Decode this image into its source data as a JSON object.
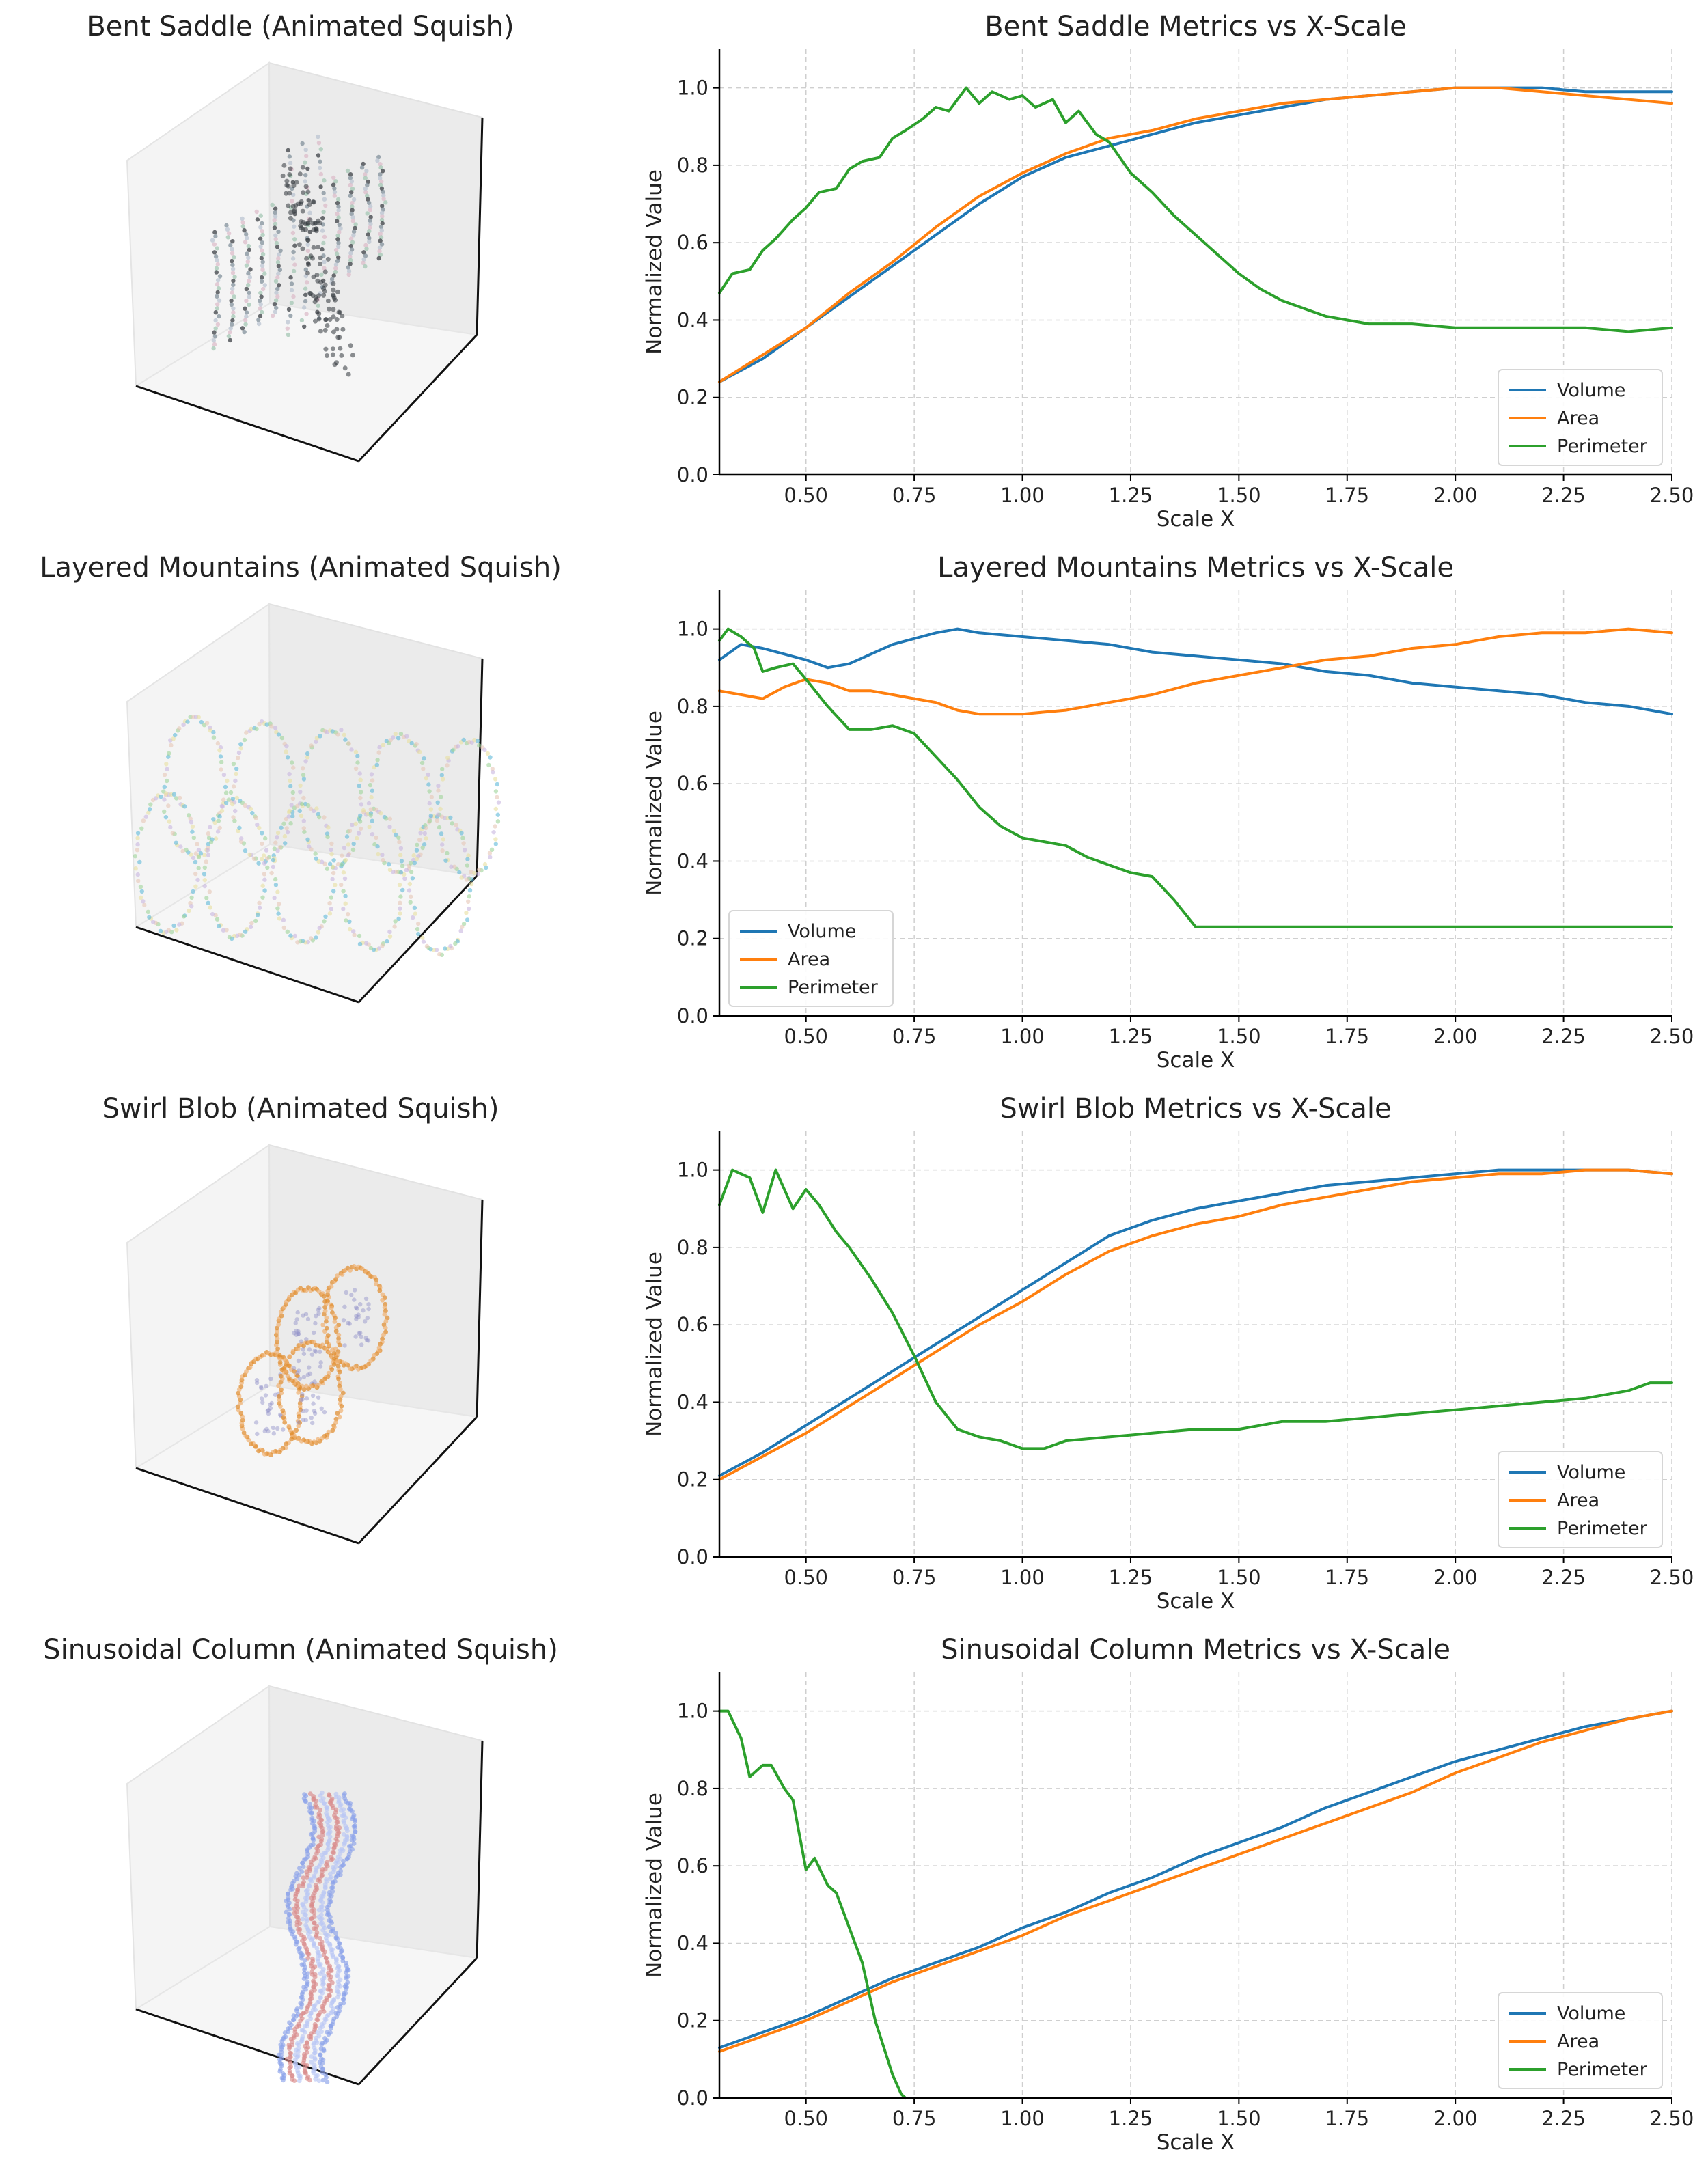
{
  "series_colors": {
    "Volume": "#1f77b4",
    "Area": "#ff7f0e",
    "Perimeter": "#2ca02c"
  },
  "panels": [
    {
      "title": "Bent Saddle (Animated Squish)",
      "shape": "bent-saddle",
      "palette": [
        "#30353a",
        "#7a8a96",
        "#b8c2d0",
        "#dcb9c8",
        "#9fc4b0"
      ]
    },
    {
      "title": "Layered Mountains (Animated Squish)",
      "shape": "layered-mountains",
      "palette": [
        "#5fb9d8",
        "#9fd49a",
        "#e6c7b5",
        "#c8b6e0",
        "#e8e0a0"
      ]
    },
    {
      "title": "Swirl Blob (Animated Squish)",
      "shape": "swirl-blob",
      "palette": [
        "#e08a2a",
        "#f0b070",
        "#8e8ec8",
        "#f5dcc0",
        "#c46a20"
      ]
    },
    {
      "title": "Sinusoidal Column (Animated Squish)",
      "shape": "sinusoidal-column",
      "palette": [
        "#8aa2ea",
        "#b9c6f5",
        "#d88a8a",
        "#c0c8f0",
        "#6a86e0"
      ]
    }
  ],
  "chart_data": [
    {
      "type": "line",
      "title": "Bent Saddle Metrics vs X-Scale",
      "xlabel": "Scale X",
      "ylabel": "Normalized Value",
      "xlim": [
        0.3,
        2.5
      ],
      "ylim": [
        0.0,
        1.1
      ],
      "xticks": [
        0.5,
        0.75,
        1.0,
        1.25,
        1.5,
        1.75,
        2.0,
        2.25,
        2.5
      ],
      "xtick_labels": [
        "0.50",
        "0.75",
        "1.00",
        "1.25",
        "1.50",
        "1.75",
        "2.00",
        "2.25",
        "2.50"
      ],
      "yticks": [
        0.0,
        0.2,
        0.4,
        0.6,
        0.8,
        1.0
      ],
      "ytick_labels": [
        "0.0",
        "0.2",
        "0.4",
        "0.6",
        "0.8",
        "1.0"
      ],
      "grid": true,
      "legend": "lower right",
      "series": [
        {
          "name": "Volume",
          "x": [
            0.3,
            0.4,
            0.5,
            0.6,
            0.7,
            0.8,
            0.9,
            1.0,
            1.1,
            1.2,
            1.3,
            1.4,
            1.5,
            1.6,
            1.7,
            1.8,
            1.9,
            2.0,
            2.1,
            2.2,
            2.3,
            2.4,
            2.5
          ],
          "y": [
            0.24,
            0.3,
            0.38,
            0.46,
            0.54,
            0.62,
            0.7,
            0.77,
            0.82,
            0.85,
            0.88,
            0.91,
            0.93,
            0.95,
            0.97,
            0.98,
            0.99,
            1.0,
            1.0,
            1.0,
            0.99,
            0.99,
            0.99
          ]
        },
        {
          "name": "Area",
          "x": [
            0.3,
            0.4,
            0.5,
            0.6,
            0.7,
            0.8,
            0.9,
            1.0,
            1.1,
            1.2,
            1.3,
            1.4,
            1.5,
            1.6,
            1.7,
            1.8,
            1.9,
            2.0,
            2.1,
            2.2,
            2.3,
            2.4,
            2.5
          ],
          "y": [
            0.24,
            0.31,
            0.38,
            0.47,
            0.55,
            0.64,
            0.72,
            0.78,
            0.83,
            0.87,
            0.89,
            0.92,
            0.94,
            0.96,
            0.97,
            0.98,
            0.99,
            1.0,
            1.0,
            0.99,
            0.98,
            0.97,
            0.96
          ]
        },
        {
          "name": "Perimeter",
          "x": [
            0.3,
            0.33,
            0.37,
            0.4,
            0.43,
            0.47,
            0.5,
            0.53,
            0.57,
            0.6,
            0.63,
            0.67,
            0.7,
            0.73,
            0.77,
            0.8,
            0.83,
            0.87,
            0.9,
            0.93,
            0.97,
            1.0,
            1.03,
            1.07,
            1.1,
            1.13,
            1.17,
            1.2,
            1.25,
            1.3,
            1.35,
            1.4,
            1.45,
            1.5,
            1.55,
            1.6,
            1.65,
            1.7,
            1.75,
            1.8,
            1.9,
            2.0,
            2.1,
            2.2,
            2.3,
            2.4,
            2.5
          ],
          "y": [
            0.47,
            0.52,
            0.53,
            0.58,
            0.61,
            0.66,
            0.69,
            0.73,
            0.74,
            0.79,
            0.81,
            0.82,
            0.87,
            0.89,
            0.92,
            0.95,
            0.94,
            1.0,
            0.96,
            0.99,
            0.97,
            0.98,
            0.95,
            0.97,
            0.91,
            0.94,
            0.88,
            0.86,
            0.78,
            0.73,
            0.67,
            0.62,
            0.57,
            0.52,
            0.48,
            0.45,
            0.43,
            0.41,
            0.4,
            0.39,
            0.39,
            0.38,
            0.38,
            0.38,
            0.38,
            0.37,
            0.38
          ]
        }
      ]
    },
    {
      "type": "line",
      "title": "Layered Mountains Metrics vs X-Scale",
      "xlabel": "Scale X",
      "ylabel": "Normalized Value",
      "xlim": [
        0.3,
        2.5
      ],
      "ylim": [
        0.0,
        1.1
      ],
      "xticks": [
        0.5,
        0.75,
        1.0,
        1.25,
        1.5,
        1.75,
        2.0,
        2.25,
        2.5
      ],
      "xtick_labels": [
        "0.50",
        "0.75",
        "1.00",
        "1.25",
        "1.50",
        "1.75",
        "2.00",
        "2.25",
        "2.50"
      ],
      "yticks": [
        0.0,
        0.2,
        0.4,
        0.6,
        0.8,
        1.0
      ],
      "ytick_labels": [
        "0.0",
        "0.2",
        "0.4",
        "0.6",
        "0.8",
        "1.0"
      ],
      "grid": true,
      "legend": "lower left",
      "series": [
        {
          "name": "Volume",
          "x": [
            0.3,
            0.35,
            0.4,
            0.5,
            0.55,
            0.6,
            0.7,
            0.8,
            0.85,
            0.9,
            1.0,
            1.1,
            1.2,
            1.3,
            1.4,
            1.5,
            1.6,
            1.7,
            1.8,
            1.9,
            2.0,
            2.1,
            2.2,
            2.3,
            2.4,
            2.5
          ],
          "y": [
            0.92,
            0.96,
            0.95,
            0.92,
            0.9,
            0.91,
            0.96,
            0.99,
            1.0,
            0.99,
            0.98,
            0.97,
            0.96,
            0.94,
            0.93,
            0.92,
            0.91,
            0.89,
            0.88,
            0.86,
            0.85,
            0.84,
            0.83,
            0.81,
            0.8,
            0.78
          ]
        },
        {
          "name": "Area",
          "x": [
            0.3,
            0.35,
            0.4,
            0.45,
            0.5,
            0.55,
            0.6,
            0.65,
            0.7,
            0.75,
            0.8,
            0.85,
            0.9,
            1.0,
            1.1,
            1.2,
            1.3,
            1.4,
            1.5,
            1.6,
            1.7,
            1.8,
            1.9,
            2.0,
            2.1,
            2.2,
            2.3,
            2.4,
            2.5
          ],
          "y": [
            0.84,
            0.83,
            0.82,
            0.85,
            0.87,
            0.86,
            0.84,
            0.84,
            0.83,
            0.82,
            0.81,
            0.79,
            0.78,
            0.78,
            0.79,
            0.81,
            0.83,
            0.86,
            0.88,
            0.9,
            0.92,
            0.93,
            0.95,
            0.96,
            0.98,
            0.99,
            0.99,
            1.0,
            0.99
          ]
        },
        {
          "name": "Perimeter",
          "x": [
            0.3,
            0.32,
            0.35,
            0.38,
            0.4,
            0.43,
            0.47,
            0.5,
            0.55,
            0.6,
            0.65,
            0.7,
            0.75,
            0.8,
            0.85,
            0.9,
            0.95,
            1.0,
            1.05,
            1.1,
            1.15,
            1.2,
            1.25,
            1.3,
            1.35,
            1.4,
            1.45,
            1.5,
            1.6,
            1.7,
            1.8,
            1.9,
            2.0,
            2.1,
            2.2,
            2.3,
            2.4,
            2.5
          ],
          "y": [
            0.97,
            1.0,
            0.98,
            0.95,
            0.89,
            0.9,
            0.91,
            0.87,
            0.8,
            0.74,
            0.74,
            0.75,
            0.73,
            0.67,
            0.61,
            0.54,
            0.49,
            0.46,
            0.45,
            0.44,
            0.41,
            0.39,
            0.37,
            0.36,
            0.3,
            0.23,
            0.23,
            0.23,
            0.23,
            0.23,
            0.23,
            0.23,
            0.23,
            0.23,
            0.23,
            0.23,
            0.23,
            0.23
          ]
        }
      ]
    },
    {
      "type": "line",
      "title": "Swirl Blob Metrics vs X-Scale",
      "xlabel": "Scale X",
      "ylabel": "Normalized Value",
      "xlim": [
        0.3,
        2.5
      ],
      "ylim": [
        0.0,
        1.1
      ],
      "xticks": [
        0.5,
        0.75,
        1.0,
        1.25,
        1.5,
        1.75,
        2.0,
        2.25,
        2.5
      ],
      "xtick_labels": [
        "0.50",
        "0.75",
        "1.00",
        "1.25",
        "1.50",
        "1.75",
        "2.00",
        "2.25",
        "2.50"
      ],
      "yticks": [
        0.0,
        0.2,
        0.4,
        0.6,
        0.8,
        1.0
      ],
      "ytick_labels": [
        "0.0",
        "0.2",
        "0.4",
        "0.6",
        "0.8",
        "1.0"
      ],
      "grid": true,
      "legend": "lower right",
      "series": [
        {
          "name": "Volume",
          "x": [
            0.3,
            0.4,
            0.5,
            0.6,
            0.7,
            0.8,
            0.9,
            1.0,
            1.1,
            1.2,
            1.3,
            1.4,
            1.5,
            1.6,
            1.7,
            1.8,
            1.9,
            2.0,
            2.1,
            2.2,
            2.3,
            2.4,
            2.5
          ],
          "y": [
            0.21,
            0.27,
            0.34,
            0.41,
            0.48,
            0.55,
            0.62,
            0.69,
            0.76,
            0.83,
            0.87,
            0.9,
            0.92,
            0.94,
            0.96,
            0.97,
            0.98,
            0.99,
            1.0,
            1.0,
            1.0,
            1.0,
            0.99
          ]
        },
        {
          "name": "Area",
          "x": [
            0.3,
            0.4,
            0.5,
            0.6,
            0.7,
            0.8,
            0.9,
            1.0,
            1.1,
            1.2,
            1.3,
            1.4,
            1.5,
            1.6,
            1.7,
            1.8,
            1.9,
            2.0,
            2.1,
            2.2,
            2.3,
            2.4,
            2.5
          ],
          "y": [
            0.2,
            0.26,
            0.32,
            0.39,
            0.46,
            0.53,
            0.6,
            0.66,
            0.73,
            0.79,
            0.83,
            0.86,
            0.88,
            0.91,
            0.93,
            0.95,
            0.97,
            0.98,
            0.99,
            0.99,
            1.0,
            1.0,
            0.99
          ]
        },
        {
          "name": "Perimeter",
          "x": [
            0.3,
            0.33,
            0.37,
            0.4,
            0.43,
            0.47,
            0.5,
            0.53,
            0.57,
            0.6,
            0.65,
            0.7,
            0.75,
            0.8,
            0.85,
            0.9,
            0.95,
            1.0,
            1.05,
            1.1,
            1.2,
            1.3,
            1.4,
            1.5,
            1.6,
            1.7,
            1.8,
            1.9,
            2.0,
            2.1,
            2.2,
            2.3,
            2.4,
            2.45,
            2.5
          ],
          "y": [
            0.91,
            1.0,
            0.98,
            0.89,
            1.0,
            0.9,
            0.95,
            0.91,
            0.84,
            0.8,
            0.72,
            0.63,
            0.52,
            0.4,
            0.33,
            0.31,
            0.3,
            0.28,
            0.28,
            0.3,
            0.31,
            0.32,
            0.33,
            0.33,
            0.35,
            0.35,
            0.36,
            0.37,
            0.38,
            0.39,
            0.4,
            0.41,
            0.43,
            0.45,
            0.45
          ]
        }
      ]
    },
    {
      "type": "line",
      "title": "Sinusoidal Column Metrics vs X-Scale",
      "xlabel": "Scale X",
      "ylabel": "Normalized Value",
      "xlim": [
        0.3,
        2.5
      ],
      "ylim": [
        0.0,
        1.1
      ],
      "xticks": [
        0.5,
        0.75,
        1.0,
        1.25,
        1.5,
        1.75,
        2.0,
        2.25,
        2.5
      ],
      "xtick_labels": [
        "0.50",
        "0.75",
        "1.00",
        "1.25",
        "1.50",
        "1.75",
        "2.00",
        "2.25",
        "2.50"
      ],
      "yticks": [
        0.0,
        0.2,
        0.4,
        0.6,
        0.8,
        1.0
      ],
      "ytick_labels": [
        "0.0",
        "0.2",
        "0.4",
        "0.6",
        "0.8",
        "1.0"
      ],
      "grid": true,
      "legend": "lower right",
      "series": [
        {
          "name": "Volume",
          "x": [
            0.3,
            0.4,
            0.5,
            0.6,
            0.7,
            0.8,
            0.9,
            1.0,
            1.1,
            1.2,
            1.3,
            1.4,
            1.5,
            1.6,
            1.7,
            1.8,
            1.9,
            2.0,
            2.1,
            2.2,
            2.3,
            2.4,
            2.5
          ],
          "y": [
            0.13,
            0.17,
            0.21,
            0.26,
            0.31,
            0.35,
            0.39,
            0.44,
            0.48,
            0.53,
            0.57,
            0.62,
            0.66,
            0.7,
            0.75,
            0.79,
            0.83,
            0.87,
            0.9,
            0.93,
            0.96,
            0.98,
            1.0
          ]
        },
        {
          "name": "Area",
          "x": [
            0.3,
            0.4,
            0.5,
            0.6,
            0.7,
            0.8,
            0.9,
            1.0,
            1.1,
            1.2,
            1.3,
            1.4,
            1.5,
            1.6,
            1.7,
            1.8,
            1.9,
            2.0,
            2.1,
            2.2,
            2.3,
            2.4,
            2.5
          ],
          "y": [
            0.12,
            0.16,
            0.2,
            0.25,
            0.3,
            0.34,
            0.38,
            0.42,
            0.47,
            0.51,
            0.55,
            0.59,
            0.63,
            0.67,
            0.71,
            0.75,
            0.79,
            0.84,
            0.88,
            0.92,
            0.95,
            0.98,
            1.0
          ]
        },
        {
          "name": "Perimeter",
          "x": [
            0.3,
            0.32,
            0.35,
            0.37,
            0.4,
            0.42,
            0.45,
            0.47,
            0.5,
            0.52,
            0.55,
            0.57,
            0.6,
            0.63,
            0.66,
            0.68,
            0.7,
            0.72,
            0.73
          ],
          "y": [
            1.0,
            1.0,
            0.93,
            0.83,
            0.86,
            0.86,
            0.8,
            0.77,
            0.59,
            0.62,
            0.55,
            0.53,
            0.44,
            0.35,
            0.2,
            0.13,
            0.06,
            0.01,
            0.0
          ]
        }
      ]
    }
  ]
}
